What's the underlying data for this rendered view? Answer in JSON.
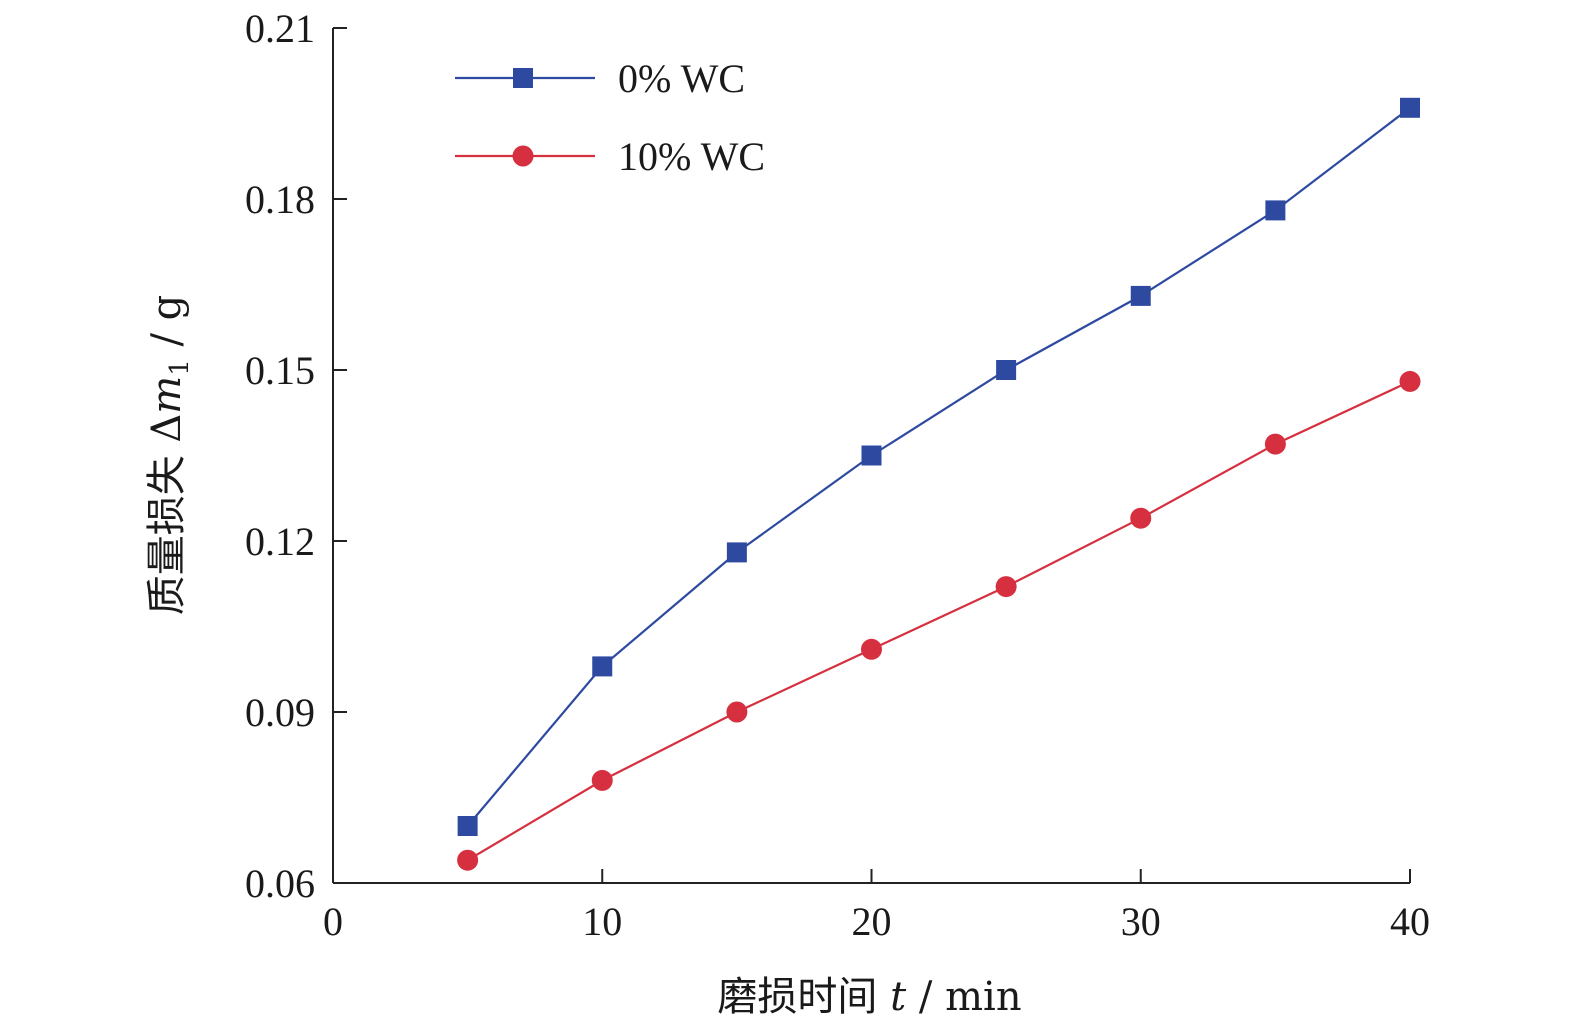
{
  "chart_data": {
    "type": "line",
    "xlabel": {
      "prefix": "磨损时间 ",
      "var": "t",
      "suffix": " / min"
    },
    "ylabel": {
      "prefix": "质量损失 Δ",
      "var": "m",
      "sub": "1",
      "suffix": " / g"
    },
    "xlim": [
      0,
      40
    ],
    "ylim": [
      0.06,
      0.21
    ],
    "xticks": [
      0,
      10,
      20,
      30,
      40
    ],
    "xtick_labels": [
      "0",
      "10",
      "20",
      "30",
      "40"
    ],
    "yticks": [
      0.06,
      0.09,
      0.12,
      0.15,
      0.18,
      0.21
    ],
    "ytick_labels": [
      "0.06",
      "0.09",
      "0.12",
      "0.15",
      "0.18",
      "0.21"
    ],
    "grid": false,
    "legend_position": "top-left",
    "x": [
      5,
      10,
      15,
      20,
      25,
      30,
      35,
      40
    ],
    "series": [
      {
        "name": "0% WC",
        "color": "#2e4aa0",
        "marker": "square",
        "values": [
          0.07,
          0.098,
          0.118,
          0.135,
          0.15,
          0.163,
          0.178,
          0.196
        ]
      },
      {
        "name": "10% WC",
        "color": "#d63040",
        "marker": "circle",
        "values": [
          0.064,
          0.078,
          0.09,
          0.101,
          0.112,
          0.124,
          0.137,
          0.148
        ]
      }
    ]
  }
}
